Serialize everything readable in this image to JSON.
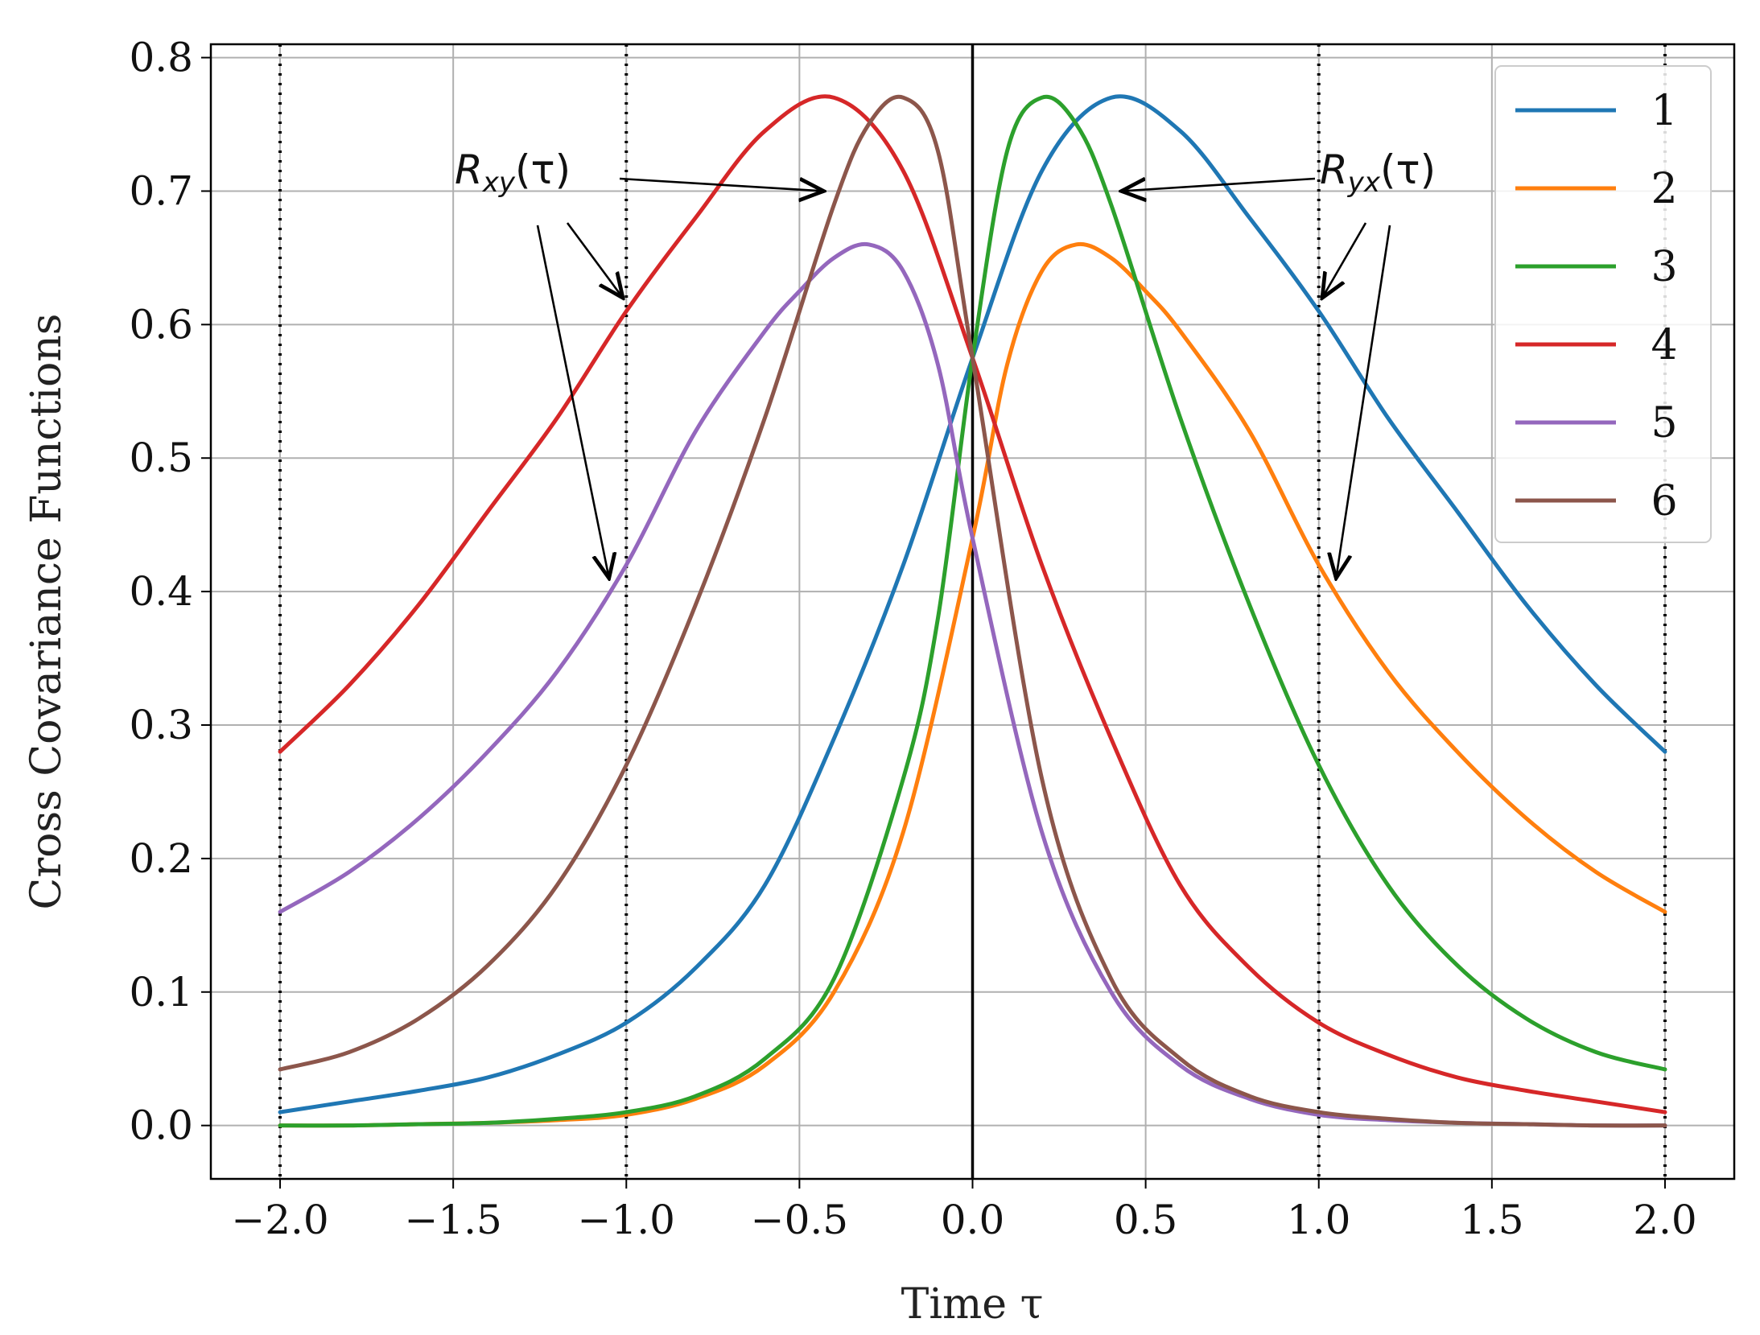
{
  "chart_data": {
    "type": "line",
    "title": "",
    "xlabel": "Time τ",
    "ylabel": "Cross Covariance Functions",
    "xlim": [
      -2.2,
      2.2
    ],
    "ylim": [
      -0.04,
      0.81
    ],
    "xticks": [
      -2.0,
      -1.5,
      -1.0,
      -0.5,
      0.0,
      0.5,
      1.0,
      1.5,
      2.0
    ],
    "xtick_labels": [
      "−2.0",
      "−1.5",
      "−1.0",
      "−0.5",
      "0.0",
      "0.5",
      "1.0",
      "1.5",
      "2.0"
    ],
    "yticks": [
      0.0,
      0.1,
      0.2,
      0.3,
      0.4,
      0.5,
      0.6,
      0.7,
      0.8
    ],
    "ytick_labels": [
      "0.0",
      "0.1",
      "0.2",
      "0.3",
      "0.4",
      "0.5",
      "0.6",
      "0.7",
      "0.8"
    ],
    "grid": true,
    "legend_position": "top-right",
    "vertical_lines": [
      {
        "x": -2.0,
        "style": "dotted"
      },
      {
        "x": -1.0,
        "style": "dotted"
      },
      {
        "x": 0.0,
        "style": "solid"
      },
      {
        "x": 1.0,
        "style": "dotted"
      },
      {
        "x": 2.0,
        "style": "dotted"
      }
    ],
    "series": [
      {
        "name": "1",
        "color": "#1f77b4",
        "x": [
          -2.0,
          -1.8,
          -1.6,
          -1.4,
          -1.2,
          -1.0,
          -0.8,
          -0.6,
          -0.4,
          -0.2,
          0.0,
          0.2,
          0.4,
          0.6,
          0.8,
          1.0,
          1.2,
          1.4,
          1.6,
          1.8,
          2.0
        ],
        "values": [
          0.01,
          0.018,
          0.026,
          0.036,
          0.053,
          0.077,
          0.118,
          0.18,
          0.29,
          0.42,
          0.575,
          0.715,
          0.77,
          0.745,
          0.68,
          0.61,
          0.53,
          0.46,
          0.39,
          0.33,
          0.28
        ]
      },
      {
        "name": "2",
        "color": "#ff7f0e",
        "x": [
          -2.0,
          -1.8,
          -1.6,
          -1.4,
          -1.2,
          -1.0,
          -0.8,
          -0.6,
          -0.4,
          -0.2,
          0.0,
          0.1,
          0.2,
          0.3,
          0.4,
          0.5,
          0.6,
          0.8,
          1.0,
          1.2,
          1.4,
          1.6,
          1.8,
          2.0
        ],
        "values": [
          0.0,
          0.0,
          0.001,
          0.002,
          0.004,
          0.008,
          0.02,
          0.045,
          0.1,
          0.22,
          0.44,
          0.57,
          0.64,
          0.66,
          0.65,
          0.625,
          0.595,
          0.52,
          0.42,
          0.34,
          0.28,
          0.23,
          0.19,
          0.16
        ]
      },
      {
        "name": "3",
        "color": "#2ca02c",
        "x": [
          -2.0,
          -1.8,
          -1.6,
          -1.4,
          -1.2,
          -1.0,
          -0.8,
          -0.6,
          -0.4,
          -0.2,
          -0.1,
          0.0,
          0.1,
          0.2,
          0.3,
          0.4,
          0.6,
          0.8,
          1.0,
          1.2,
          1.4,
          1.6,
          1.8,
          2.0
        ],
        "values": [
          0.0,
          0.0,
          0.001,
          0.002,
          0.005,
          0.01,
          0.022,
          0.05,
          0.11,
          0.26,
          0.38,
          0.575,
          0.73,
          0.77,
          0.75,
          0.69,
          0.53,
          0.39,
          0.27,
          0.18,
          0.12,
          0.08,
          0.055,
          0.042
        ]
      },
      {
        "name": "4",
        "color": "#d62728",
        "x": [
          -2.0,
          -1.8,
          -1.6,
          -1.4,
          -1.2,
          -1.0,
          -0.8,
          -0.6,
          -0.4,
          -0.2,
          0.0,
          0.2,
          0.4,
          0.6,
          0.8,
          1.0,
          1.2,
          1.4,
          1.6,
          1.8,
          2.0
        ],
        "values": [
          0.28,
          0.33,
          0.39,
          0.46,
          0.53,
          0.61,
          0.68,
          0.745,
          0.77,
          0.715,
          0.575,
          0.42,
          0.29,
          0.18,
          0.118,
          0.077,
          0.053,
          0.036,
          0.026,
          0.018,
          0.01
        ]
      },
      {
        "name": "5",
        "color": "#9467bd",
        "x": [
          -2.0,
          -1.8,
          -1.6,
          -1.4,
          -1.2,
          -1.0,
          -0.8,
          -0.6,
          -0.5,
          -0.4,
          -0.3,
          -0.2,
          -0.1,
          0.0,
          0.2,
          0.4,
          0.6,
          0.8,
          1.0,
          1.2,
          1.4,
          1.6,
          1.8,
          2.0
        ],
        "values": [
          0.16,
          0.19,
          0.23,
          0.28,
          0.34,
          0.42,
          0.52,
          0.595,
          0.625,
          0.65,
          0.66,
          0.64,
          0.57,
          0.44,
          0.22,
          0.1,
          0.045,
          0.02,
          0.008,
          0.004,
          0.002,
          0.001,
          0.0,
          0.0
        ]
      },
      {
        "name": "6",
        "color": "#8c564b",
        "x": [
          -2.0,
          -1.8,
          -1.6,
          -1.4,
          -1.2,
          -1.0,
          -0.8,
          -0.6,
          -0.4,
          -0.3,
          -0.2,
          -0.1,
          0.0,
          0.2,
          0.4,
          0.6,
          0.8,
          1.0,
          1.2,
          1.4,
          1.6,
          1.8,
          2.0
        ],
        "values": [
          0.042,
          0.055,
          0.08,
          0.12,
          0.18,
          0.27,
          0.39,
          0.53,
          0.69,
          0.75,
          0.77,
          0.73,
          0.575,
          0.26,
          0.11,
          0.05,
          0.022,
          0.01,
          0.005,
          0.002,
          0.001,
          0.0,
          0.0
        ]
      }
    ],
    "annotations": [
      {
        "main": "R",
        "sub": "xy",
        "suffix": "(τ)",
        "targets": [
          [
            -0.43,
            0.7
          ],
          [
            -1.01,
            0.62
          ],
          [
            -1.05,
            0.41
          ]
        ]
      },
      {
        "main": "R",
        "sub": "yx",
        "suffix": "(τ)",
        "targets": [
          [
            0.43,
            0.7
          ],
          [
            1.01,
            0.62
          ],
          [
            1.05,
            0.41
          ]
        ]
      }
    ]
  }
}
